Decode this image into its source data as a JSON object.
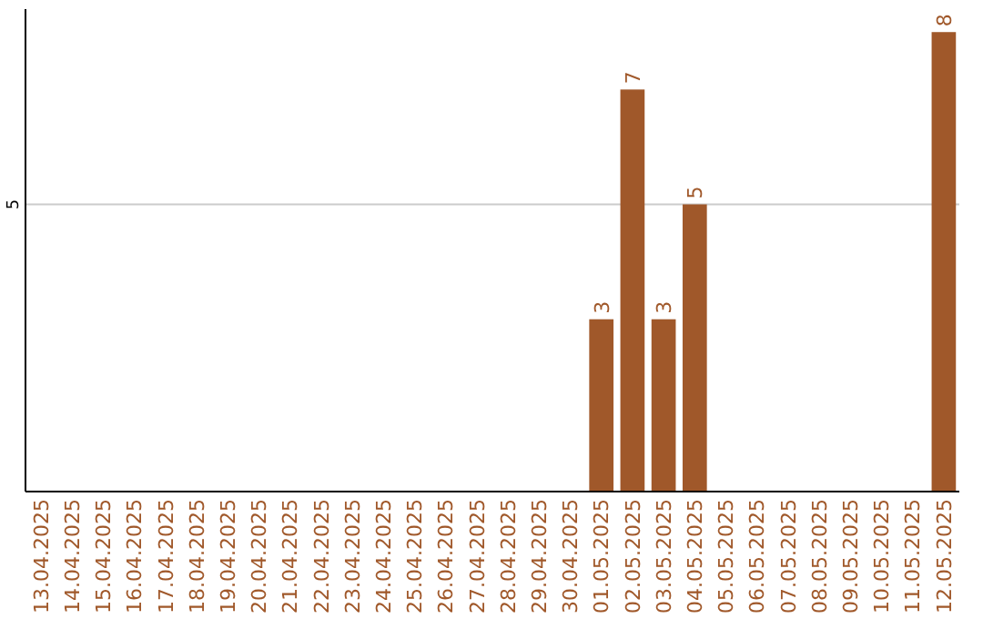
{
  "chart_data": {
    "type": "bar",
    "ylim": [
      0,
      8.4
    ],
    "categories": [
      "13.04.2025",
      "14.04.2025",
      "15.04.2025",
      "16.04.2025",
      "17.04.2025",
      "18.04.2025",
      "19.04.2025",
      "20.04.2025",
      "21.04.2025",
      "22.04.2025",
      "23.04.2025",
      "24.04.2025",
      "25.04.2025",
      "26.04.2025",
      "27.04.2025",
      "28.04.2025",
      "29.04.2025",
      "30.04.2025",
      "01.05.2025",
      "02.05.2025",
      "03.05.2025",
      "04.05.2025",
      "05.05.2025",
      "06.05.2025",
      "07.05.2025",
      "08.05.2025",
      "09.05.2025",
      "10.05.2025",
      "11.05.2025",
      "12.05.2025"
    ],
    "values": [
      null,
      null,
      null,
      null,
      null,
      null,
      null,
      null,
      null,
      null,
      null,
      null,
      null,
      null,
      null,
      null,
      null,
      null,
      3,
      7,
      3,
      5,
      null,
      null,
      null,
      null,
      null,
      null,
      null,
      8
    ],
    "value_labels": [
      null,
      null,
      null,
      null,
      null,
      null,
      null,
      null,
      null,
      null,
      null,
      null,
      null,
      null,
      null,
      null,
      null,
      null,
      "3",
      "7",
      "3",
      "5",
      null,
      null,
      null,
      null,
      null,
      null,
      null,
      "8"
    ],
    "color": "#a0582a",
    "ref_lines": [
      {
        "axis": "y",
        "value": 5,
        "label": "5",
        "color": "#cccccc"
      }
    ]
  }
}
